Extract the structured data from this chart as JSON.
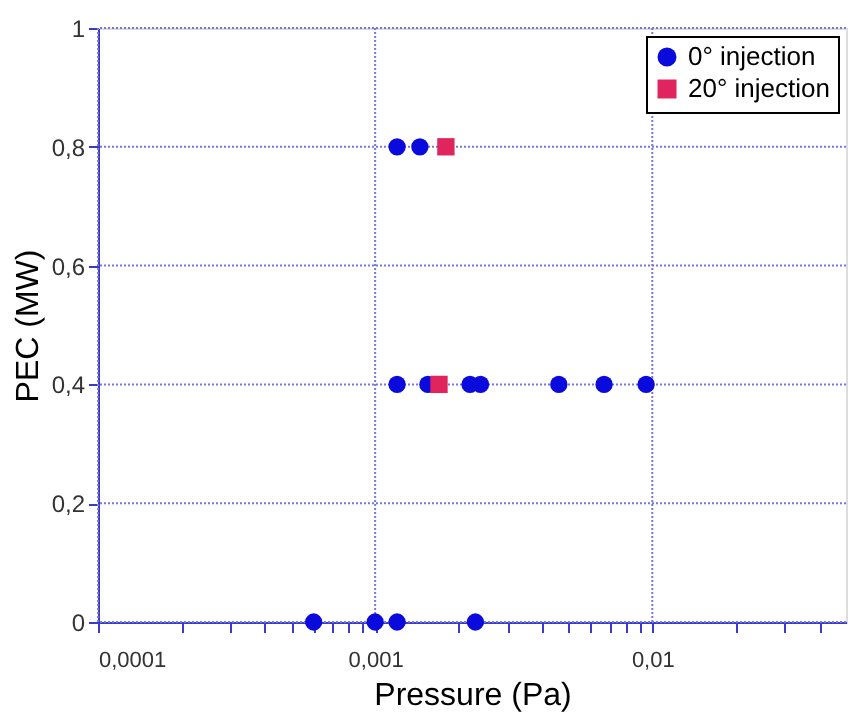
{
  "chart_data": {
    "type": "scatter",
    "xlabel": "Pressure (Pa)",
    "ylabel": "PEC (MW)",
    "log": "x",
    "xlim": [
      0.0001,
      0.05
    ],
    "ylim": [
      0,
      1
    ],
    "xticks": [
      {
        "value": 0.0001,
        "label": "0,0001"
      },
      {
        "value": 0.0002,
        "label": null
      },
      {
        "value": 0.0003,
        "label": null
      },
      {
        "value": 0.0004,
        "label": null
      },
      {
        "value": 0.0005,
        "label": null
      },
      {
        "value": 0.0006,
        "label": null
      },
      {
        "value": 0.0007,
        "label": null
      },
      {
        "value": 0.0008,
        "label": null
      },
      {
        "value": 0.0009,
        "label": null
      },
      {
        "value": 0.001,
        "label": "0,001"
      },
      {
        "value": 0.002,
        "label": null
      },
      {
        "value": 0.003,
        "label": null
      },
      {
        "value": 0.004,
        "label": null
      },
      {
        "value": 0.005,
        "label": null
      },
      {
        "value": 0.006,
        "label": null
      },
      {
        "value": 0.007,
        "label": null
      },
      {
        "value": 0.008,
        "label": null
      },
      {
        "value": 0.009,
        "label": null
      },
      {
        "value": 0.01,
        "label": "0,01"
      },
      {
        "value": 0.02,
        "label": null
      },
      {
        "value": 0.03,
        "label": null
      },
      {
        "value": 0.04,
        "label": null
      }
    ],
    "yticks": [
      0,
      {
        "value": 0.2,
        "label": "0,2"
      },
      {
        "value": 0.4,
        "label": "0,4"
      },
      {
        "value": 0.6,
        "label": "0,6"
      },
      {
        "value": 0.8,
        "label": "0,8"
      },
      1
    ],
    "grid": true,
    "legend": "top right",
    "series": [
      {
        "name": "0° injection",
        "color": "#0a0adc",
        "marker": "circle",
        "x": [
          0.0006,
          0.001,
          0.0012,
          0.0023,
          0.0012,
          0.00155,
          0.0022,
          0.0024,
          0.0046,
          0.0067,
          0.0095,
          0.0012,
          0.00145
        ],
        "values": [
          0,
          0,
          0,
          0,
          0.4,
          0.4,
          0.4,
          0.4,
          0.4,
          0.4,
          0.4,
          0.8,
          0.8
        ]
      },
      {
        "name": "20° injection",
        "color": "#e0245e",
        "marker": "square",
        "x": [
          0.0017,
          0.0018
        ],
        "values": [
          0.4,
          0.8
        ]
      }
    ]
  }
}
